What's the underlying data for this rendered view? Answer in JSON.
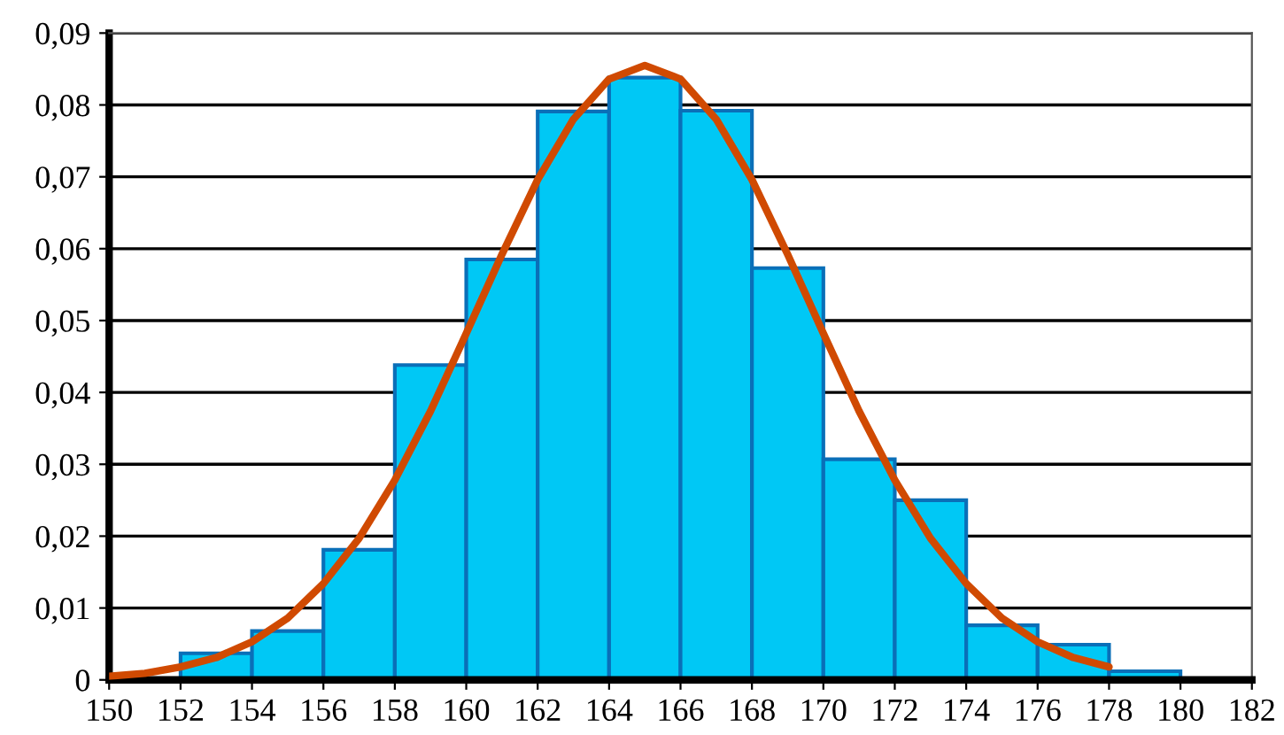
{
  "chart_data": {
    "type": "histogram",
    "bins": [
      152,
      154,
      156,
      158,
      160,
      162,
      164,
      166,
      168,
      170,
      172,
      174,
      176,
      178,
      180
    ],
    "values": [
      0.0037,
      0.0068,
      0.0181,
      0.0438,
      0.0585,
      0.0791,
      0.0838,
      0.0792,
      0.0573,
      0.0307,
      0.025,
      0.0076,
      0.0049,
      0.0012
    ],
    "color": "#00c8f5",
    "series": [
      {
        "type": "line",
        "color": "#d04a02",
        "x": [
          150,
          151,
          152,
          153,
          154,
          155,
          156,
          157,
          158,
          159,
          160,
          161,
          162,
          163,
          164,
          165,
          166,
          167,
          168,
          169,
          170,
          171,
          172,
          173,
          174,
          175,
          176,
          177,
          178
        ],
        "values": [
          0.0005,
          0.0009,
          0.0018,
          0.0031,
          0.0053,
          0.0086,
          0.0134,
          0.0197,
          0.0278,
          0.0374,
          0.0482,
          0.0592,
          0.0696,
          0.078,
          0.0836,
          0.0855,
          0.0836,
          0.078,
          0.0696,
          0.0592,
          0.0482,
          0.0374,
          0.0278,
          0.0197,
          0.0134,
          0.0086,
          0.0053,
          0.0031,
          0.0018
        ]
      }
    ],
    "xlim": [
      150,
      182
    ],
    "xticks": [
      150,
      152,
      154,
      156,
      158,
      160,
      162,
      164,
      166,
      168,
      170,
      172,
      174,
      176,
      178,
      180,
      182
    ],
    "ylim": [
      0,
      0.09
    ],
    "yticks": [
      0,
      {
        "value": 0.01,
        "label": "0,01"
      },
      {
        "value": 0.02,
        "label": "0,02"
      },
      {
        "value": 0.03,
        "label": "0,03"
      },
      {
        "value": 0.04,
        "label": "0,04"
      },
      {
        "value": 0.05,
        "label": "0,05"
      },
      {
        "value": 0.06,
        "label": "0,06"
      },
      {
        "value": 0.07,
        "label": "0,07"
      },
      {
        "value": 0.08,
        "label": "0,08"
      },
      {
        "value": 0.09,
        "label": "0,09"
      }
    ],
    "grid": "y"
  }
}
